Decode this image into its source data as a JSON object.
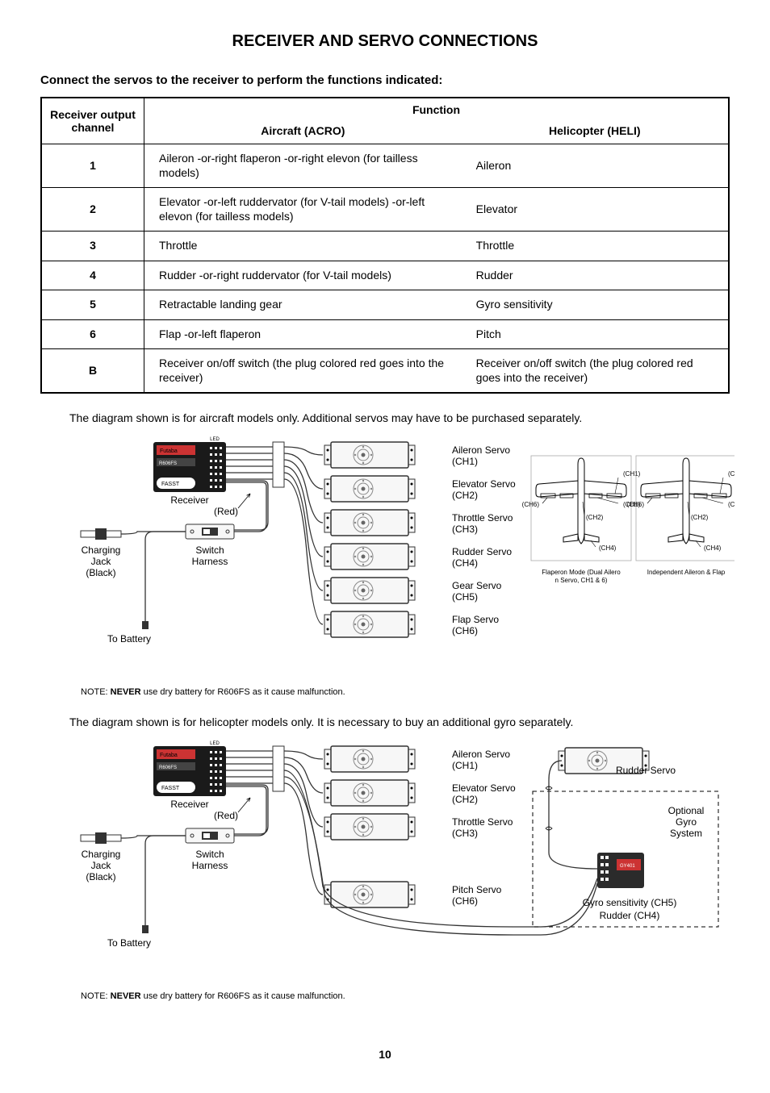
{
  "title": "RECEIVER AND SERVO CONNECTIONS",
  "subtitle": "Connect the servos to the receiver to perform the functions indicated:",
  "table": {
    "col_channel": "Receiver output channel",
    "col_function": "Function",
    "col_acro": "Aircraft (ACRO)",
    "col_heli": "Helicopter (HELI)",
    "rows": [
      {
        "ch": "1",
        "acro": "Aileron -or-right flaperon -or-right elevon (for tailless models)",
        "heli": "Aileron"
      },
      {
        "ch": "2",
        "acro": "Elevator -or-left ruddervator (for V-tail models) -or-left elevon (for tailless models)",
        "heli": "Elevator"
      },
      {
        "ch": "3",
        "acro": "Throttle",
        "heli": "Throttle"
      },
      {
        "ch": "4",
        "acro": "Rudder -or-right ruddervator (for V-tail models)",
        "heli": "Rudder"
      },
      {
        "ch": "5",
        "acro": "Retractable landing gear",
        "heli": "Gyro sensitivity"
      },
      {
        "ch": "6",
        "acro": "Flap -or-left flaperon",
        "heli": "Pitch"
      },
      {
        "ch": "B",
        "acro": "Receiver on/off switch (the plug colored red goes into the receiver)",
        "heli": "Receiver on/off switch (the plug colored red goes into the receiver)"
      }
    ]
  },
  "note_aircraft": "The diagram shown is for aircraft models only. Additional servos may have to be purchased separately.",
  "note_heli": "The diagram shown is for helicopter models only. It is necessary to buy an additional gyro separately.",
  "battery_note_prefix": "NOTE: ",
  "battery_note_bold": "NEVER",
  "battery_note_rest": " use dry battery for R606FS as it cause malfunction.",
  "diagram_aircraft": {
    "receiver_label": "Receiver",
    "red_label": "(Red)",
    "switch_label": "Switch Harness",
    "charging_label": "Charging Jack (Black)",
    "to_battery": "To Battery",
    "servos": [
      {
        "name": "Aileron Servo",
        "ch": "(CH1)"
      },
      {
        "name": "Elevator Servo",
        "ch": "(CH2)"
      },
      {
        "name": "Throttle Servo",
        "ch": "(CH3)"
      },
      {
        "name": "Rudder Servo",
        "ch": "(CH4)"
      },
      {
        "name": "Gear Servo",
        "ch": "(CH5)"
      },
      {
        "name": "Flap Servo",
        "ch": "(CH6)"
      }
    ],
    "plane_left_caption": "Flaperon Mode (Dual Aileron Servo, CH1 & 6)",
    "plane_right_caption": "Independent Aileron & Flap",
    "plane_ch": {
      "ch1": "(CH1)",
      "ch2": "(CH2)",
      "ch4": "(CH4)",
      "ch6": "(CH6)"
    }
  },
  "diagram_heli": {
    "receiver_label": "Receiver",
    "red_label": "(Red)",
    "switch_label": "Switch Harness",
    "charging_label": "Charging Jack (Black)",
    "to_battery": "To Battery",
    "rudder_servo": "Rudder Servo",
    "optional_gyro": "Optional Gyro System",
    "gyro_sens": "Gyro sensitivity (CH5)",
    "rudder_ch4": "Rudder (CH4)",
    "servos": [
      {
        "name": "Aileron Servo",
        "ch": "(CH1)"
      },
      {
        "name": "Elevator Servo",
        "ch": "(CH2)"
      },
      {
        "name": "Throttle Servo",
        "ch": "(CH3)"
      },
      {
        "name": "Pitch Servo",
        "ch": "(CH6)"
      }
    ]
  },
  "page_number": "10",
  "colors": {
    "receiver_fill": "#1a1a1a",
    "servo_fill": "#f7f7f7",
    "servo_stroke": "#333333",
    "wire": "#333333",
    "gyro_fill": "#2b2b2b"
  },
  "layout": {
    "servo_w": 96,
    "servo_h": 32,
    "servo_gap": 10
  }
}
